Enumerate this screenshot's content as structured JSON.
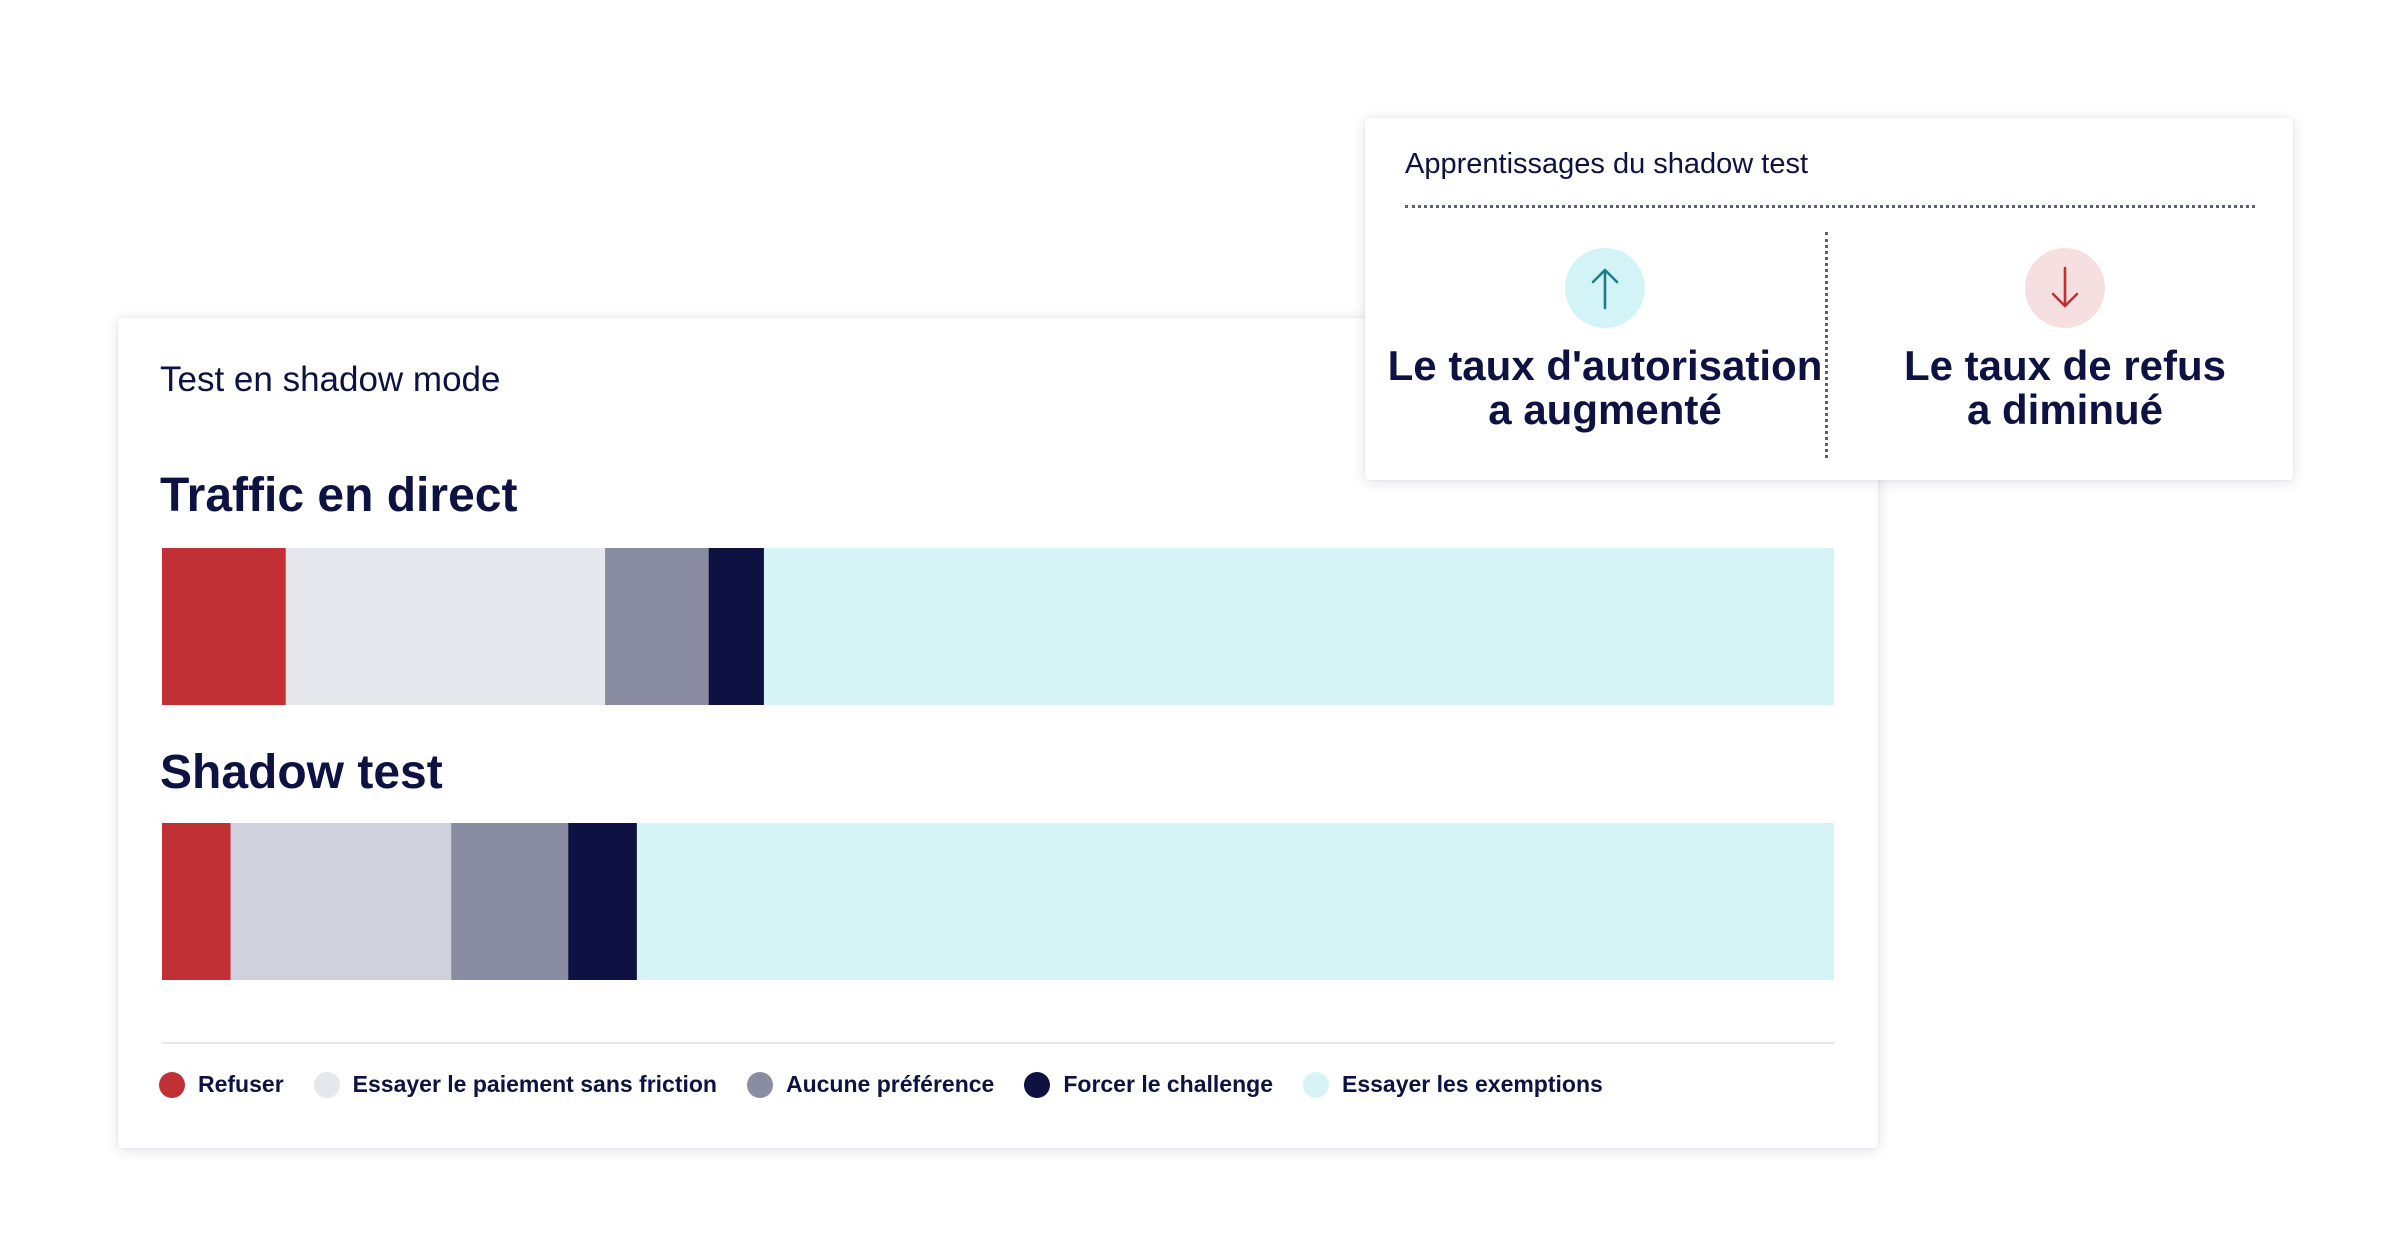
{
  "main_card": {
    "title": "Test en shadow mode"
  },
  "insight_card": {
    "title": "Apprentissages du shadow test",
    "items": [
      {
        "icon": "arrow-up-icon",
        "line1": "Le taux d'autorisation",
        "line2": "a augmenté",
        "icon_color": "#1e7d8c",
        "icon_bg": "#d2f4f6"
      },
      {
        "icon": "arrow-down-icon",
        "line1": "Le taux de refus",
        "line2": "a diminué",
        "icon_color": "#c03035",
        "icon_bg": "#f6dfe1"
      }
    ]
  },
  "chart_data": {
    "type": "bar",
    "orientation": "horizontal",
    "stacked": true,
    "unit": "percent",
    "categories": [
      "Traffic en direct",
      "Shadow test"
    ],
    "series": [
      {
        "name": "Refuser",
        "color": "#c03035",
        "values": [
          7.4,
          4.1
        ]
      },
      {
        "name": "Essayer le paiement sans friction",
        "color_by_category": [
          "#e6e7ec",
          "#d0d1dc"
        ],
        "color": "#e6e7ec",
        "values": [
          19.1,
          13.2
        ]
      },
      {
        "name": "Aucune préférence",
        "color": "#8a8da2",
        "values": [
          6.2,
          7.0
        ]
      },
      {
        "name": "Forcer le challenge",
        "color": "#0d1242",
        "values": [
          3.3,
          4.1
        ]
      },
      {
        "name": "Essayer les exemptions",
        "color": "#d6f4f6",
        "values": [
          64.0,
          71.6
        ]
      }
    ],
    "xlim": [
      0,
      100
    ],
    "legend_position": "bottom",
    "grid": false,
    "title": "",
    "xlabel": "",
    "ylabel": ""
  }
}
